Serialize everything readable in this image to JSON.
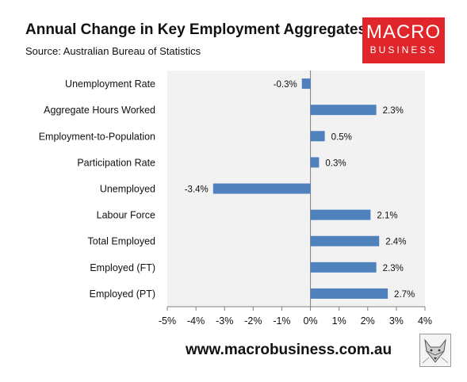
{
  "header": {
    "title": "Annual Change in Key Employment Aggregates",
    "source": "Source: Australian Bureau of Statistics"
  },
  "logo": {
    "line1": "MACRO",
    "line2": "BUSINESS",
    "color": "#e0262a"
  },
  "footer": {
    "website": "www.macrobusiness.com.au",
    "emblem_icon": "fox-emblem-icon"
  },
  "chart_data": {
    "type": "bar",
    "orientation": "horizontal",
    "title": "Annual Change in Key Employment Aggregates",
    "subtitle": "Source: Australian Bureau of Statistics",
    "categories": [
      "Unemployment Rate",
      "Aggregate Hours Worked",
      "Employment-to-Population",
      "Participation Rate",
      "Unemployed",
      "Labour Force",
      "Total Employed",
      "Employed (FT)",
      "Employed (PT)"
    ],
    "values": [
      -0.3,
      2.3,
      0.5,
      0.3,
      -3.4,
      2.1,
      2.4,
      2.3,
      2.7
    ],
    "data_labels": [
      "-0.3%",
      "2.3%",
      "0.5%",
      "0.3%",
      "-3.4%",
      "2.1%",
      "2.4%",
      "2.3%",
      "2.7%"
    ],
    "xlim": [
      -5,
      4
    ],
    "xticks": [
      -5,
      -4,
      -3,
      -2,
      -1,
      0,
      1,
      2,
      3,
      4
    ],
    "xtick_labels": [
      "-5%",
      "-4%",
      "-3%",
      "-2%",
      "-1%",
      "0%",
      "1%",
      "2%",
      "3%",
      "4%"
    ],
    "xlabel": "",
    "ylabel": "",
    "grid": false,
    "legend": "none",
    "bar_color": "#4f81bd",
    "plot_background": "#f2f2f2"
  }
}
